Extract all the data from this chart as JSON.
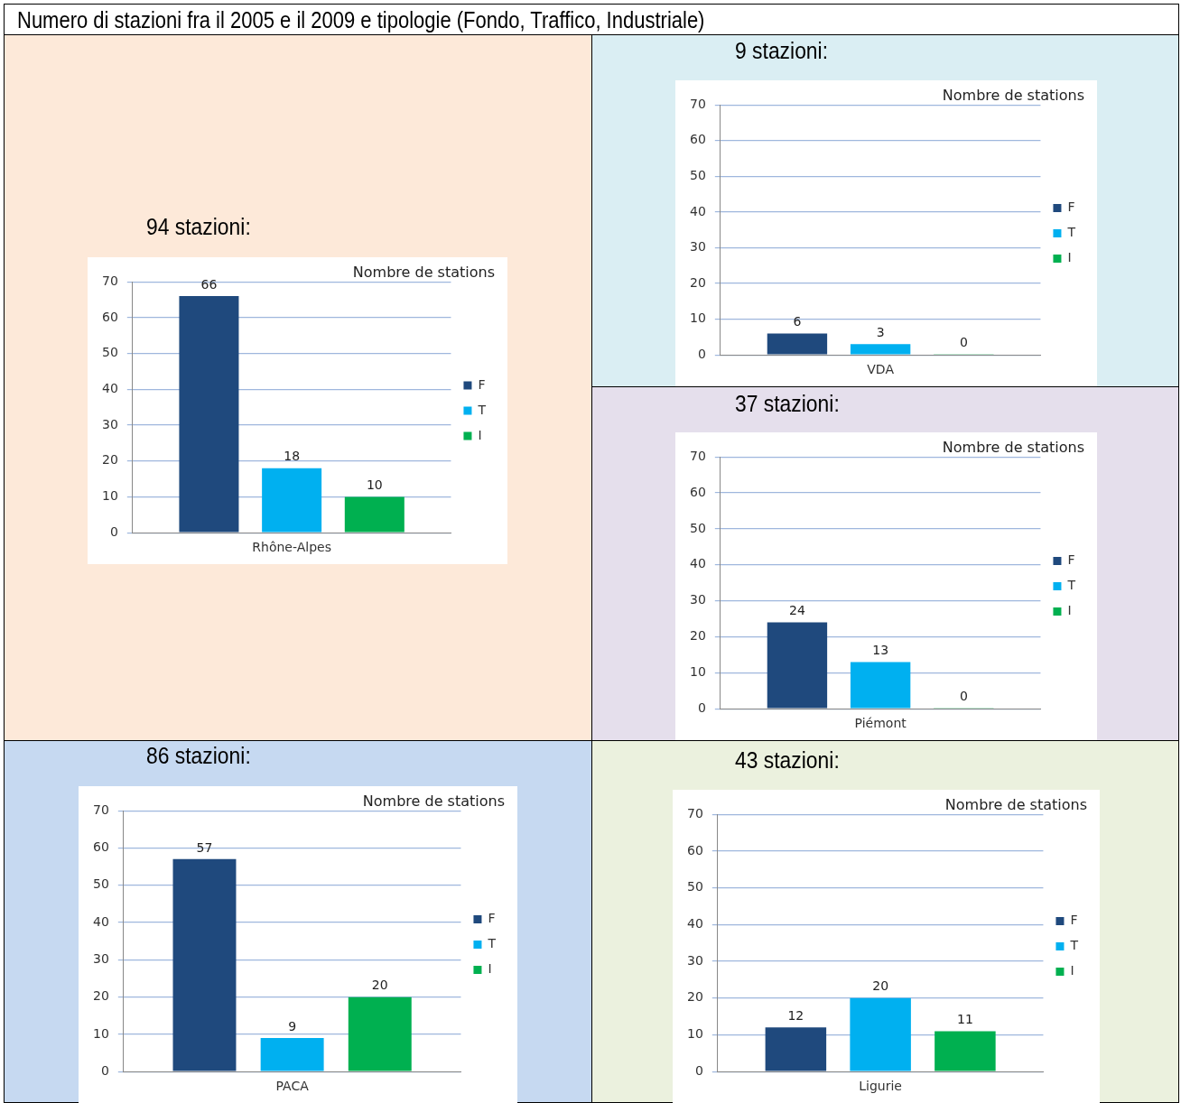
{
  "chart_data": [
    {
      "type": "other",
      "title": "Numero di stazioni fra il 2005 e il 2009 e tipologie (Fondo, Traffico, Industriale)"
    },
    {
      "type": "bar",
      "title": "94 stazioni:",
      "subtitle": "Nombre de stations",
      "categories": [
        "Rhône-Alpes"
      ],
      "series": [
        {
          "name": "F",
          "color": "#1f497d",
          "values": [
            66
          ]
        },
        {
          "name": "T",
          "color": "#00b0f0",
          "values": [
            18
          ]
        },
        {
          "name": "I",
          "color": "#00b050",
          "values": [
            10
          ]
        }
      ],
      "ylim": [
        0,
        70
      ],
      "yticks": [
        0,
        10,
        20,
        30,
        40,
        50,
        60,
        70
      ],
      "grid": "y",
      "legend": "right",
      "data_labels": true
    },
    {
      "type": "bar",
      "title": "9 stazioni:",
      "subtitle": "Nombre de stations",
      "categories": [
        "VDA"
      ],
      "series": [
        {
          "name": "F",
          "color": "#1f497d",
          "values": [
            6
          ]
        },
        {
          "name": "T",
          "color": "#00b0f0",
          "values": [
            3
          ]
        },
        {
          "name": "I",
          "color": "#00b050",
          "values": [
            0
          ]
        }
      ],
      "ylim": [
        0,
        70
      ],
      "yticks": [
        0,
        10,
        20,
        30,
        40,
        50,
        60,
        70
      ],
      "grid": "y",
      "legend": "right",
      "data_labels": true
    },
    {
      "type": "bar",
      "title": "37 stazioni:",
      "subtitle": "Nombre de stations",
      "categories": [
        "Piémont"
      ],
      "series": [
        {
          "name": "F",
          "color": "#1f497d",
          "values": [
            24
          ]
        },
        {
          "name": "T",
          "color": "#00b0f0",
          "values": [
            13
          ]
        },
        {
          "name": "I",
          "color": "#00b050",
          "values": [
            0
          ]
        }
      ],
      "ylim": [
        0,
        70
      ],
      "yticks": [
        0,
        10,
        20,
        30,
        40,
        50,
        60,
        70
      ],
      "grid": "y",
      "legend": "right",
      "data_labels": true
    },
    {
      "type": "bar",
      "title": "86 stazioni:",
      "subtitle": "Nombre de stations",
      "categories": [
        "PACA"
      ],
      "series": [
        {
          "name": "F",
          "color": "#1f497d",
          "values": [
            57
          ]
        },
        {
          "name": "T",
          "color": "#00b0f0",
          "values": [
            9
          ]
        },
        {
          "name": "I",
          "color": "#00b050",
          "values": [
            20
          ]
        }
      ],
      "ylim": [
        0,
        70
      ],
      "yticks": [
        0,
        10,
        20,
        30,
        40,
        50,
        60,
        70
      ],
      "grid": "y",
      "legend": "right",
      "data_labels": true
    },
    {
      "type": "bar",
      "title": "43 stazioni:",
      "subtitle": "Nombre de stations",
      "categories": [
        "Ligurie"
      ],
      "series": [
        {
          "name": "F",
          "color": "#1f497d",
          "values": [
            12
          ]
        },
        {
          "name": "T",
          "color": "#00b0f0",
          "values": [
            20
          ]
        },
        {
          "name": "I",
          "color": "#00b050",
          "values": [
            11
          ]
        }
      ],
      "ylim": [
        0,
        70
      ],
      "yticks": [
        0,
        10,
        20,
        30,
        40,
        50,
        60,
        70
      ],
      "grid": "y",
      "legend": "right",
      "data_labels": true
    }
  ]
}
